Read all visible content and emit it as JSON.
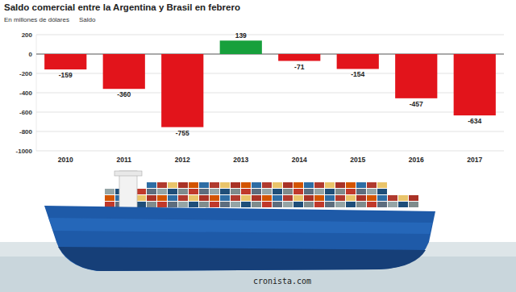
{
  "chart_data": {
    "type": "bar",
    "title": "Saldo comercial entre la Argentina y Brasil en febrero",
    "subtitle": "En millones de dólares",
    "ylabel": "Saldo",
    "annotations": [
      "cronista.com"
    ],
    "categories": [
      "2010",
      "2011",
      "2012",
      "2013",
      "2014",
      "2015",
      "2016",
      "2017"
    ],
    "values": [
      -159,
      -360,
      -755,
      139,
      -71,
      -154,
      -457,
      -634
    ],
    "colors": [
      "#e2141b",
      "#e2141b",
      "#e2141b",
      "#17a03c",
      "#e2141b",
      "#e2141b",
      "#e2141b",
      "#e2141b"
    ],
    "ylim": [
      -1000,
      200
    ],
    "yticks": [
      200,
      0,
      -200,
      -400,
      -600,
      -800,
      -1000
    ],
    "grid": true,
    "data_labels": true
  }
}
